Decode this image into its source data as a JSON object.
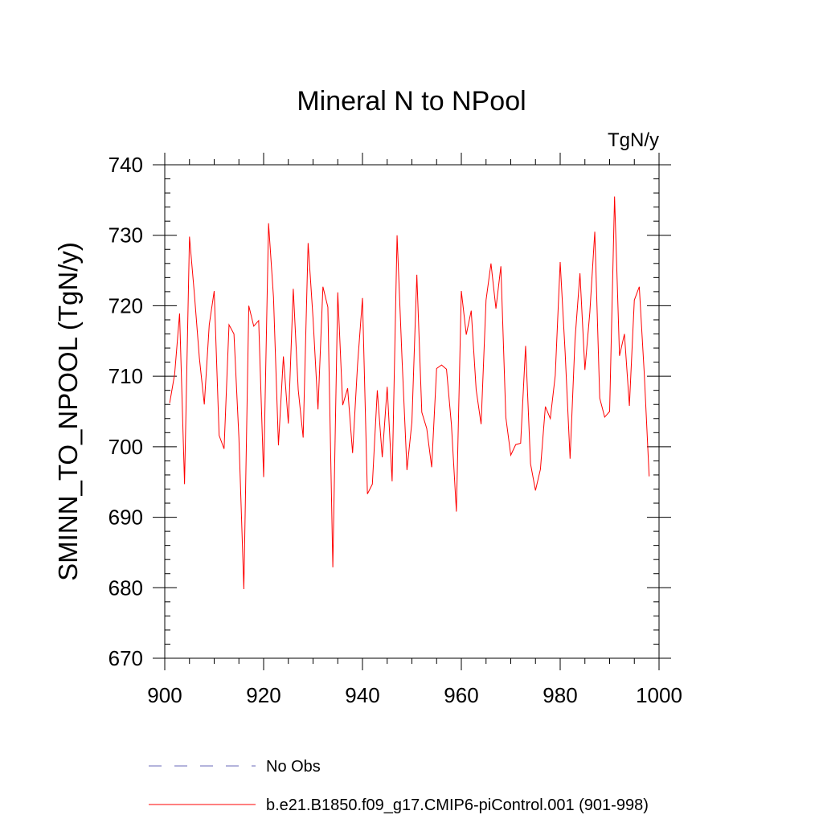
{
  "chart_data": {
    "type": "line",
    "title": "Mineral N to NPool",
    "units_label": "TgN/y",
    "ylabel": "SMINN_TO_NPOOL  (TgN/y)",
    "xlabel": "",
    "xlim": [
      900,
      1000
    ],
    "ylim": [
      670,
      740
    ],
    "xticks": [
      900,
      920,
      940,
      960,
      980,
      1000
    ],
    "yticks": [
      670,
      680,
      690,
      700,
      710,
      720,
      730,
      740
    ],
    "xminor_step": 5,
    "yminor_step": 2,
    "grid": false,
    "legend_position": "bottom",
    "series": [
      {
        "name": "b.e21.B1850.f09_g17.CMIP6-piControl.001 (901-998)",
        "color": "#ff0000",
        "style": "solid",
        "x": [
          901,
          902,
          903,
          904,
          905,
          906,
          907,
          908,
          909,
          910,
          911,
          912,
          913,
          914,
          915,
          916,
          917,
          918,
          919,
          920,
          921,
          922,
          923,
          924,
          925,
          926,
          927,
          928,
          929,
          930,
          931,
          932,
          933,
          934,
          935,
          936,
          937,
          938,
          939,
          940,
          941,
          942,
          943,
          944,
          945,
          946,
          947,
          948,
          949,
          950,
          951,
          952,
          953,
          954,
          955,
          956,
          957,
          958,
          959,
          960,
          961,
          962,
          963,
          964,
          965,
          966,
          967,
          968,
          969,
          970,
          971,
          972,
          973,
          974,
          975,
          976,
          977,
          978,
          979,
          980,
          981,
          982,
          983,
          984,
          985,
          986,
          987,
          988,
          989,
          990,
          991,
          992,
          993,
          994,
          995,
          996,
          997,
          998
        ],
        "values": [
          706.2,
          710.3,
          718.9,
          694.7,
          729.8,
          721.6,
          712.6,
          706.0,
          717.3,
          722.1,
          701.6,
          699.7,
          717.3,
          716.0,
          701.3,
          679.8,
          720.0,
          717.1,
          717.9,
          695.7,
          731.7,
          721.2,
          700.2,
          712.8,
          703.3,
          722.4,
          708.1,
          701.3,
          728.9,
          718.2,
          705.3,
          722.7,
          719.8,
          682.9,
          721.9,
          705.9,
          708.3,
          699.1,
          711.6,
          721.1,
          693.3,
          694.7,
          708.0,
          698.5,
          708.5,
          695.1,
          730.0,
          712.5,
          696.7,
          703.5,
          724.4,
          704.9,
          702.6,
          697.1,
          711.1,
          711.6,
          711.0,
          703.1,
          690.8,
          722.1,
          715.9,
          719.3,
          708.1,
          703.2,
          720.8,
          726.0,
          719.6,
          725.6,
          704.2,
          698.8,
          700.3,
          700.5,
          714.3,
          697.6,
          693.8,
          696.8,
          705.7,
          704.0,
          710.1,
          726.2,
          713.4,
          698.3,
          715.2,
          724.6,
          710.9,
          719.1,
          730.5,
          706.9,
          704.2,
          705.0,
          735.5,
          712.9,
          716.0,
          705.8,
          720.8,
          722.7,
          710.5,
          695.8
        ]
      }
    ]
  },
  "legend": {
    "items": [
      {
        "label": "No Obs",
        "color": "#6a6ab8",
        "style": "dashed"
      },
      {
        "label": "b.e21.B1850.f09_g17.CMIP6-piControl.001 (901-998)",
        "color": "#ff0000",
        "style": "solid"
      }
    ]
  }
}
